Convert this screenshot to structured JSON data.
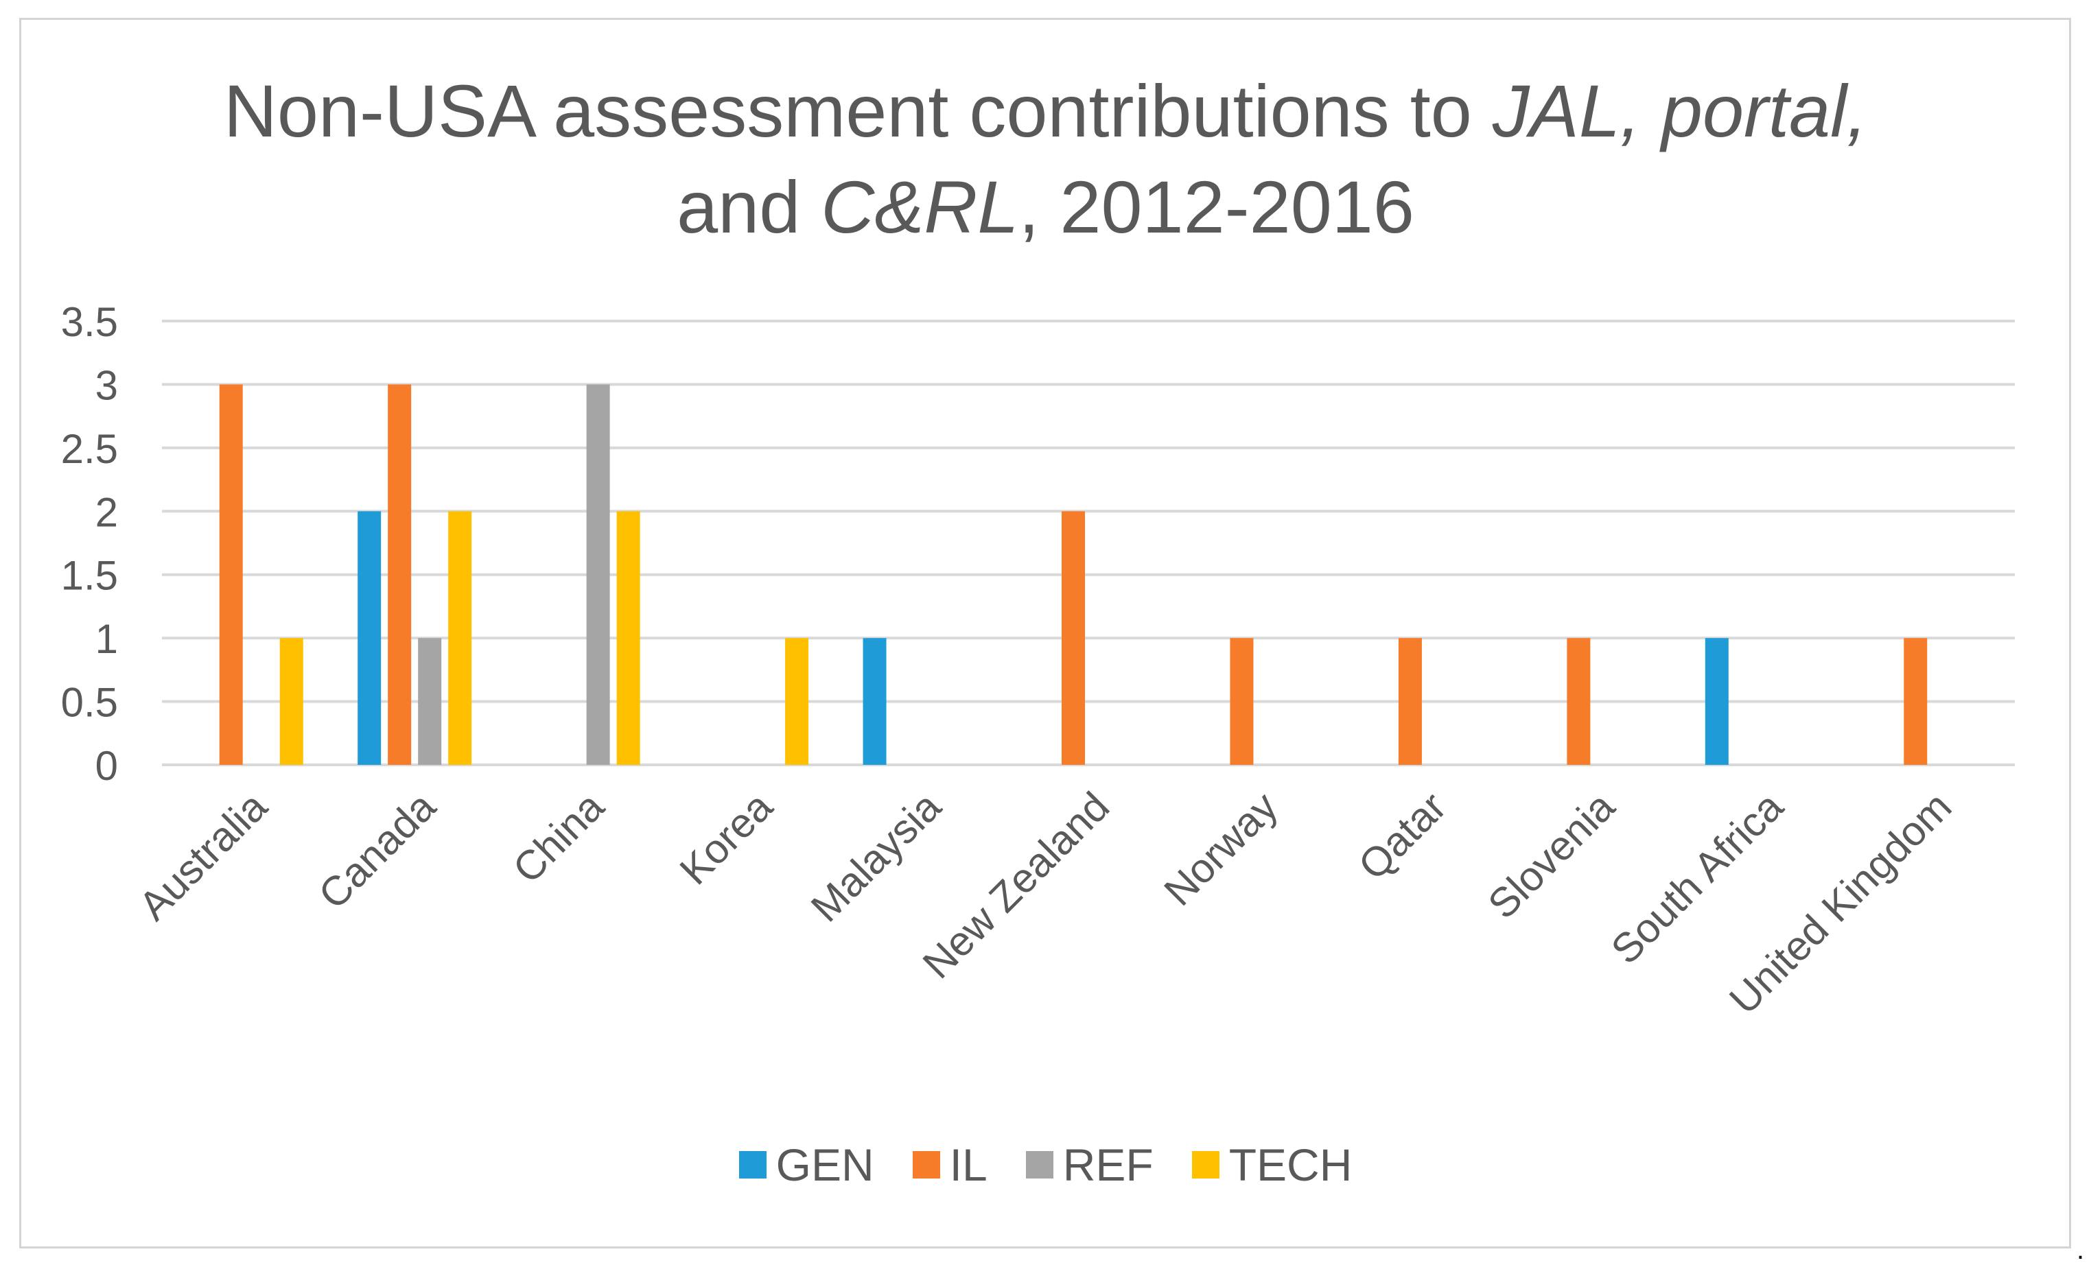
{
  "chart_data": {
    "type": "bar",
    "title_parts": {
      "line1_plain": "Non-USA assessment contributions to ",
      "line1_italic_a": "JAL",
      "line1_sep": ", ",
      "line1_italic_b": "portal",
      "line1_end": ",",
      "line2_plain_a": "and ",
      "line2_italic": "C&RL",
      "line2_plain_b": ", 2012-2016"
    },
    "xlabel": "",
    "ylabel": "",
    "ylim": [
      0,
      3.5
    ],
    "ytick_step": 0.5,
    "ytick_labels": [
      "0",
      "0.5",
      "1",
      "1.5",
      "2",
      "2.5",
      "3",
      "3.5"
    ],
    "grid": true,
    "legend_position": "bottom",
    "categories": [
      "Australia",
      "Canada",
      "China",
      "Korea",
      "Malaysia",
      "New Zealand",
      "Norway",
      "Qatar",
      "Slovenia",
      "South Africa",
      "United Kingdom"
    ],
    "series": [
      {
        "name": "GEN",
        "color": "#1f9bd7",
        "values": [
          0,
          2,
          0,
          0,
          1,
          0,
          0,
          0,
          0,
          1,
          0
        ]
      },
      {
        "name": "IL",
        "color": "#f67c2a",
        "values": [
          3,
          3,
          0,
          0,
          0,
          2,
          1,
          1,
          1,
          0,
          1
        ]
      },
      {
        "name": "REF",
        "color": "#a5a5a5",
        "values": [
          0,
          1,
          3,
          0,
          0,
          0,
          0,
          0,
          0,
          0,
          0
        ]
      },
      {
        "name": "TECH",
        "color": "#ffc000",
        "values": [
          1,
          2,
          2,
          1,
          0,
          0,
          0,
          0,
          0,
          0,
          0
        ]
      }
    ]
  },
  "page": {
    "trailing_mark": "."
  },
  "colors": {
    "grid": "#d9d9d9",
    "axis_text": "#595959",
    "title_text": "#595959"
  }
}
